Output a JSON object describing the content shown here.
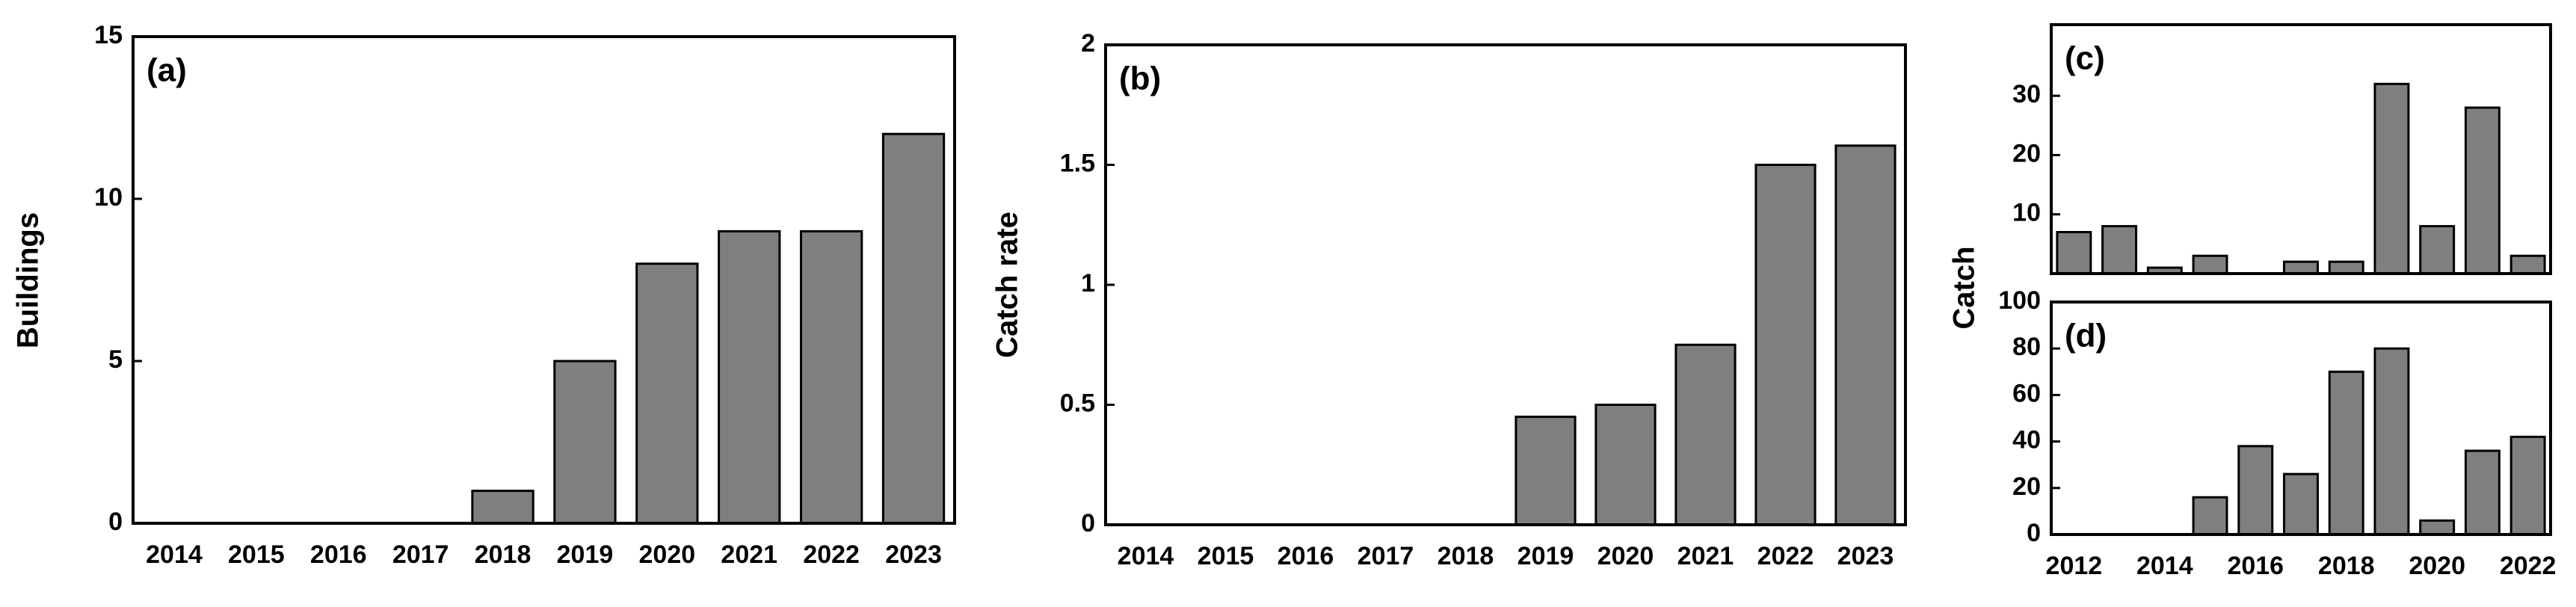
{
  "chart_data": [
    {
      "type": "bar",
      "label": "(a)",
      "ylabel": "Buildings",
      "categories": [
        "2014",
        "2015",
        "2016",
        "2017",
        "2018",
        "2019",
        "2020",
        "2021",
        "2022",
        "2023"
      ],
      "values": [
        0,
        0,
        0,
        0,
        1,
        5,
        8,
        9,
        9,
        12
      ],
      "color": "#7f7f7f",
      "ylim": [
        0,
        15
      ],
      "yticks": [
        0,
        5,
        10,
        15
      ]
    },
    {
      "type": "bar",
      "label": "(b)",
      "ylabel": "Catch rate",
      "categories": [
        "2014",
        "2015",
        "2016",
        "2017",
        "2018",
        "2019",
        "2020",
        "2021",
        "2022",
        "2023"
      ],
      "values": [
        0,
        0,
        0,
        0,
        0,
        0.45,
        0.5,
        0.75,
        1.5,
        1.58
      ],
      "color": "#7f7f7f",
      "ylim": [
        0,
        2
      ],
      "yticks": [
        0,
        0.5,
        1,
        1.5,
        2
      ]
    },
    {
      "type": "bar",
      "label": "(c)",
      "values": [
        7,
        8,
        1,
        3,
        0,
        2,
        2,
        32,
        8,
        28,
        3
      ],
      "color": "#7f7f7f",
      "ylim": [
        0,
        42
      ],
      "yticks": [
        10,
        20,
        30
      ]
    },
    {
      "type": "bar",
      "label": "(d)",
      "ylabel": "Catch",
      "categories": [
        "2012",
        null,
        "2014",
        null,
        "2016",
        null,
        "2018",
        null,
        "2020",
        null,
        "2022"
      ],
      "values": [
        0,
        0,
        0,
        16,
        38,
        26,
        70,
        80,
        6,
        36,
        42
      ],
      "color": "#7f7f7f",
      "ylim": [
        0,
        100
      ],
      "yticks": [
        0,
        20,
        40,
        60,
        80,
        100
      ]
    }
  ]
}
